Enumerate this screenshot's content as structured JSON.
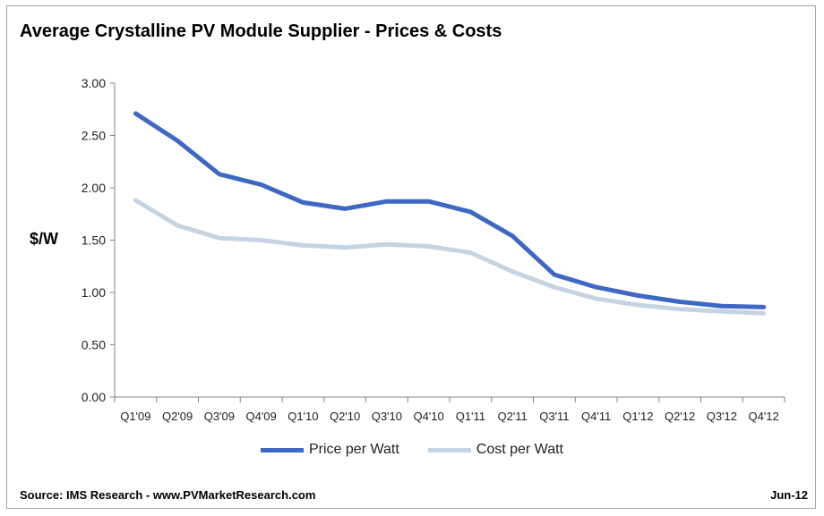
{
  "chart_data": {
    "type": "line",
    "title": "Average Crystalline PV Module Supplier - Prices & Costs",
    "ylabel": "$/W",
    "xlabel": "",
    "ylim": [
      0,
      3
    ],
    "yticks": [
      "0.00",
      "0.50",
      "1.00",
      "1.50",
      "2.00",
      "2.50",
      "3.00"
    ],
    "categories": [
      "Q1'09",
      "Q2'09",
      "Q3'09",
      "Q4'09",
      "Q1'10",
      "Q2'10",
      "Q3'10",
      "Q4'10",
      "Q1'11",
      "Q2'11",
      "Q3'11",
      "Q4'11",
      "Q1'12",
      "Q2'12",
      "Q3'12",
      "Q4'12"
    ],
    "series": [
      {
        "name": "Price per Watt",
        "color": "#3d68c4",
        "values": [
          2.71,
          2.45,
          2.13,
          2.03,
          1.86,
          1.8,
          1.87,
          1.87,
          1.77,
          1.54,
          1.17,
          1.05,
          0.97,
          0.91,
          0.87,
          0.86
        ]
      },
      {
        "name": "Cost per Watt",
        "color": "#c5d4e2",
        "values": [
          1.88,
          1.64,
          1.52,
          1.5,
          1.45,
          1.43,
          1.46,
          1.44,
          1.38,
          1.2,
          1.05,
          0.94,
          0.88,
          0.84,
          0.82,
          0.8
        ]
      }
    ],
    "legend_position": "bottom",
    "grid": false
  },
  "footer": {
    "source": "Source: IMS Research - www.PVMarketResearch.com",
    "date": "Jun-12"
  }
}
